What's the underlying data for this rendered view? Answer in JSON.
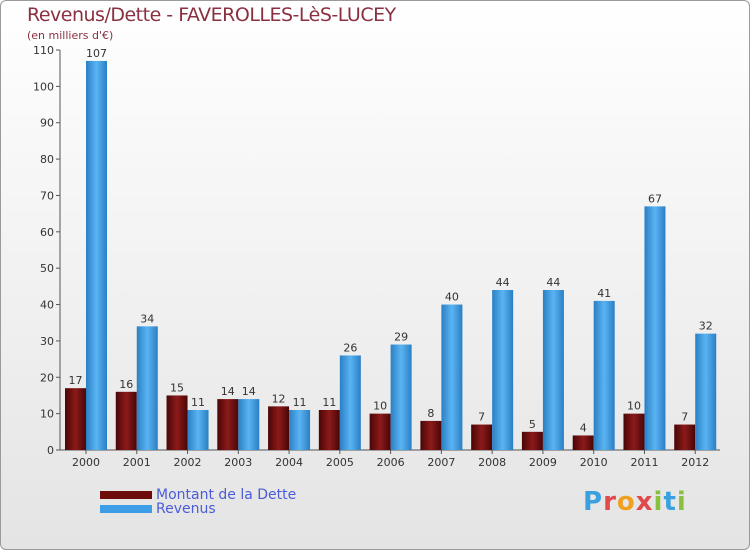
{
  "chart_data": {
    "type": "bar",
    "title": "Revenus/Dette - FAVEROLLES-LèS-LUCEY",
    "subtitle": "(en milliers d'€)",
    "categories": [
      "2000",
      "2001",
      "2002",
      "2003",
      "2004",
      "2005",
      "2006",
      "2007",
      "2008",
      "2009",
      "2010",
      "2011",
      "2012"
    ],
    "series": [
      {
        "name": "Montant de la Dette",
        "color": "#7a1010",
        "values": [
          17,
          16,
          15,
          14,
          12,
          11,
          10,
          8,
          7,
          5,
          4,
          10,
          7
        ]
      },
      {
        "name": "Revenus",
        "color": "#3d9de6",
        "values": [
          107,
          34,
          11,
          14,
          11,
          26,
          29,
          40,
          44,
          44,
          41,
          67,
          32
        ]
      }
    ],
    "ylim": [
      0,
      110
    ],
    "yticks": [
      0,
      10,
      20,
      30,
      40,
      50,
      60,
      70,
      80,
      90,
      100,
      110
    ],
    "grid": false,
    "legend": "bottom-left"
  },
  "logo": {
    "text": "Proxiti",
    "letters": [
      "P",
      "r",
      "o",
      "x",
      "i",
      "t",
      "i"
    ],
    "colors": [
      "#3aa0e0",
      "#e04a4a",
      "#f0a020",
      "#e04a4a",
      "#8ac040",
      "#3aa0e0",
      "#8ac040"
    ]
  }
}
